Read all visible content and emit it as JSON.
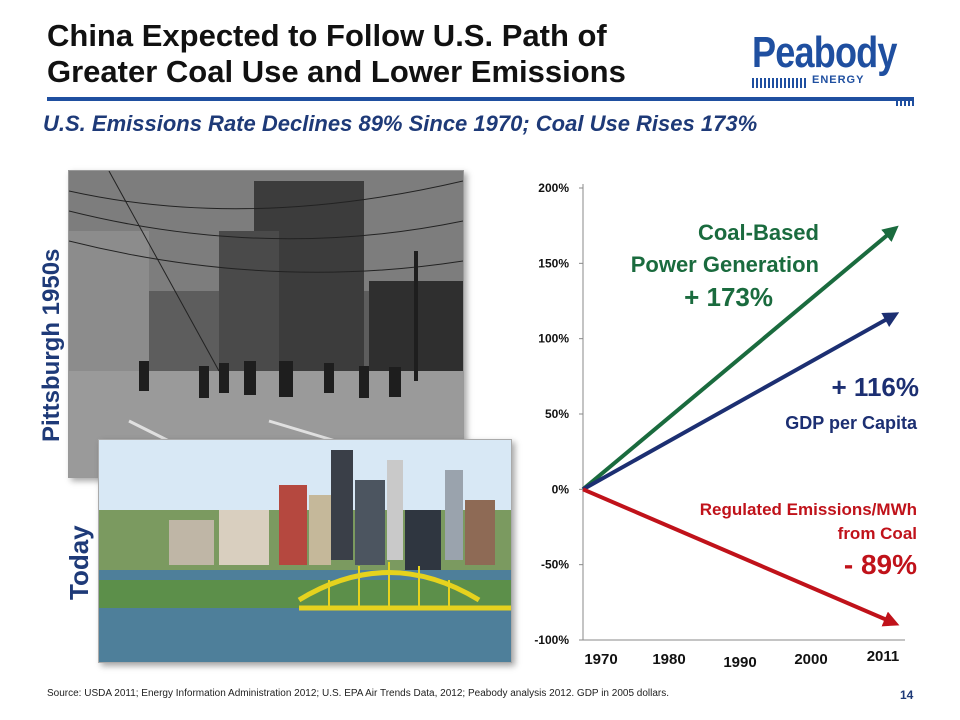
{
  "slide": {
    "title_line1": "China Expected to Follow U.S. Path of",
    "title_line2": "Greater Coal Use and Lower Emissions",
    "subtitle": "U.S. Emissions Rate Declines 89% Since 1970; Coal Use Rises 173%",
    "logo_text": "Peabody",
    "logo_subtext": "ENERGY",
    "photo_label_old": "Pittsburgh 1950s",
    "photo_label_today": "Today",
    "footer": "Source:  USDA 2011; Energy Information Administration 2012; U.S. EPA Air Trends Data, 2012; Peabody analysis 2012. GDP in 2005 dollars.",
    "page_number": "14",
    "colors": {
      "accent": "#1f4fa0",
      "subtitle": "#1e3a78",
      "coal": "#1a6b3e",
      "gdp": "#1c2f72",
      "emissions": "#c0121a"
    }
  },
  "chart_data": {
    "type": "line",
    "x_ticks": [
      "1970",
      "1980",
      "1990",
      "2000",
      "2011"
    ],
    "y_ticks": [
      "200%",
      "150%",
      "100%",
      "50%",
      "0%",
      "-50%",
      "-100%"
    ],
    "ylim": [
      -100,
      200
    ],
    "xlim": [
      1970,
      2011
    ],
    "series": [
      {
        "name": "Coal-Based Power Generation",
        "label_lines": [
          "Coal-Based",
          "Power Generation"
        ],
        "value_label": "+ 173%",
        "color": "#1a6b3e",
        "x": [
          1970,
          2011
        ],
        "y": [
          0,
          173
        ]
      },
      {
        "name": "GDP per Capita",
        "label_lines": [
          "GDP per Capita"
        ],
        "value_label": "+ 116%",
        "color": "#1c2f72",
        "x": [
          1970,
          2011
        ],
        "y": [
          0,
          116
        ]
      },
      {
        "name": "Regulated Emissions/MWh from Coal",
        "label_lines": [
          "Regulated Emissions/MWh",
          "from Coal"
        ],
        "value_label": "- 89%",
        "color": "#c0121a",
        "x": [
          1970,
          2011
        ],
        "y": [
          0,
          -89
        ]
      }
    ]
  }
}
